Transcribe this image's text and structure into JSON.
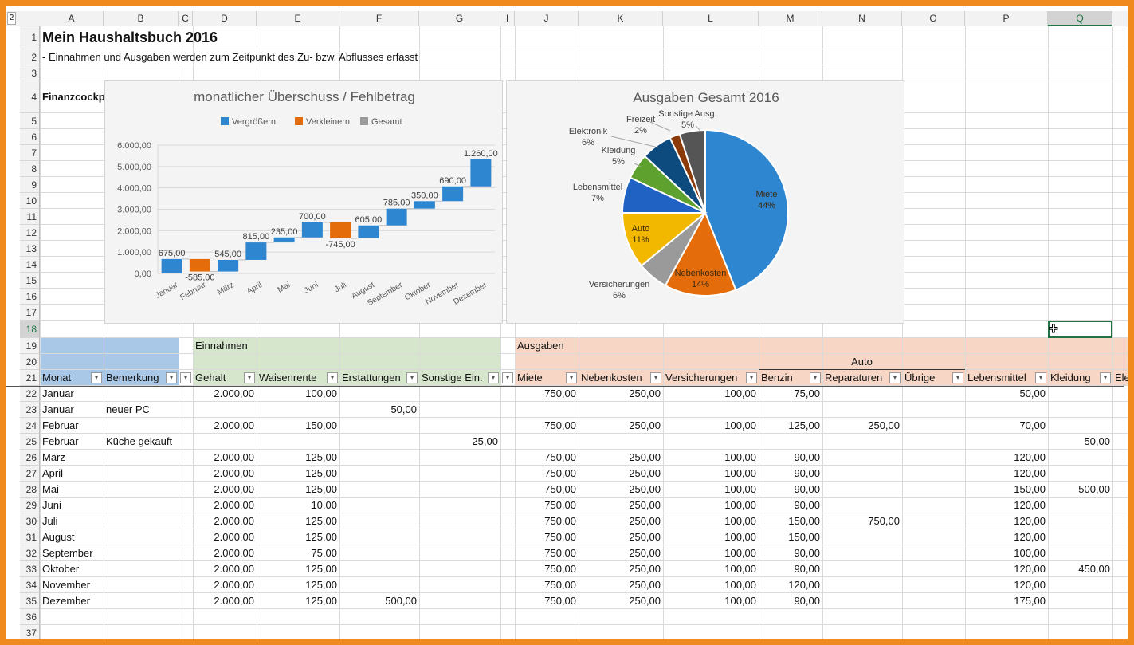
{
  "sheet": {
    "outline_level": "2",
    "columns": [
      "A",
      "B",
      "C",
      "D",
      "E",
      "F",
      "G",
      "I",
      "J",
      "K",
      "L",
      "M",
      "N",
      "O",
      "P",
      "Q",
      ""
    ],
    "title": "Mein Haushaltsbuch 2016",
    "subtitle": "- Einnahmen und Ausgaben werden zum Zeitpunkt des Zu- bzw. Abflusses erfasst",
    "cockpit_label": "Finanzcockpit",
    "selected_cell": "Q18",
    "colors": {
      "accent_frame": "#f08a1e",
      "group_blue": "#a9c8e8",
      "group_green": "#d6e6cd",
      "group_salmon": "#f7d6c5",
      "selection": "#217346"
    }
  },
  "table": {
    "group_einnahmen": "Einnahmen",
    "group_ausgaben": "Ausgaben",
    "subgroup_auto": "Auto",
    "headers": [
      "Monat",
      "Bemerkung",
      "",
      "Gehalt",
      "Waisenrente",
      "Erstattungen",
      "Sonstige Ein.",
      "",
      "Miete",
      "Nebenkosten",
      "Versicherungen",
      "Benzin",
      "Reparaturen",
      "Übrige",
      "Lebensmittel",
      "Kleidung",
      "Ele"
    ],
    "rows": [
      [
        "Januar",
        "",
        "",
        "2.000,00",
        "100,00",
        "",
        "",
        "",
        "750,00",
        "250,00",
        "100,00",
        "75,00",
        "",
        "",
        "50,00",
        ""
      ],
      [
        "Januar",
        "neuer PC",
        "",
        "",
        "",
        "50,00",
        "",
        "",
        "",
        "",
        "",
        "",
        "",
        "",
        "",
        ""
      ],
      [
        "Februar",
        "",
        "",
        "2.000,00",
        "150,00",
        "",
        "",
        "",
        "750,00",
        "250,00",
        "100,00",
        "125,00",
        "250,00",
        "",
        "70,00",
        ""
      ],
      [
        "Februar",
        "Küche gekauft",
        "",
        "",
        "",
        "",
        "25,00",
        "",
        "",
        "",
        "",
        "",
        "",
        "",
        "",
        "50,00"
      ],
      [
        "März",
        "",
        "",
        "2.000,00",
        "125,00",
        "",
        "",
        "",
        "750,00",
        "250,00",
        "100,00",
        "90,00",
        "",
        "",
        "120,00",
        ""
      ],
      [
        "April",
        "",
        "",
        "2.000,00",
        "125,00",
        "",
        "",
        "",
        "750,00",
        "250,00",
        "100,00",
        "90,00",
        "",
        "",
        "120,00",
        ""
      ],
      [
        "Mai",
        "",
        "",
        "2.000,00",
        "125,00",
        "",
        "",
        "",
        "750,00",
        "250,00",
        "100,00",
        "90,00",
        "",
        "",
        "150,00",
        "500,00"
      ],
      [
        "Juni",
        "",
        "",
        "2.000,00",
        "10,00",
        "",
        "",
        "",
        "750,00",
        "250,00",
        "100,00",
        "90,00",
        "",
        "",
        "120,00",
        ""
      ],
      [
        "Juli",
        "",
        "",
        "2.000,00",
        "125,00",
        "",
        "",
        "",
        "750,00",
        "250,00",
        "100,00",
        "150,00",
        "750,00",
        "",
        "120,00",
        ""
      ],
      [
        "August",
        "",
        "",
        "2.000,00",
        "125,00",
        "",
        "",
        "",
        "750,00",
        "250,00",
        "100,00",
        "150,00",
        "",
        "",
        "120,00",
        ""
      ],
      [
        "September",
        "",
        "",
        "2.000,00",
        "75,00",
        "",
        "",
        "",
        "750,00",
        "250,00",
        "100,00",
        "90,00",
        "",
        "",
        "100,00",
        ""
      ],
      [
        "Oktober",
        "",
        "",
        "2.000,00",
        "125,00",
        "",
        "",
        "",
        "750,00",
        "250,00",
        "100,00",
        "90,00",
        "",
        "",
        "120,00",
        "450,00"
      ],
      [
        "November",
        "",
        "",
        "2.000,00",
        "125,00",
        "",
        "",
        "",
        "750,00",
        "250,00",
        "100,00",
        "120,00",
        "",
        "",
        "120,00",
        ""
      ],
      [
        "Dezember",
        "",
        "",
        "2.000,00",
        "125,00",
        "500,00",
        "",
        "",
        "750,00",
        "250,00",
        "100,00",
        "90,00",
        "",
        "",
        "175,00",
        ""
      ]
    ]
  },
  "chart_data": [
    {
      "type": "bar",
      "subtype": "waterfall",
      "title": "monatlicher Überschuss / Fehlbetrag",
      "legend": [
        "Vergrößern",
        "Verkleinern",
        "Gesamt"
      ],
      "legend_colors": [
        "#2e86d0",
        "#e46c0a",
        "#9a9a9a"
      ],
      "legend_position": "top",
      "categories": [
        "Januar",
        "Februar",
        "März",
        "April",
        "Mai",
        "Juni",
        "Juli",
        "August",
        "September",
        "Oktober",
        "November",
        "Dezember"
      ],
      "values": [
        675,
        -585,
        545,
        815,
        235,
        700,
        -745,
        605,
        785,
        350,
        690,
        1260
      ],
      "value_labels": [
        "675,00",
        "-585,00",
        "545,00",
        "815,00",
        "235,00",
        "700,00",
        "-745,00",
        "605,00",
        "785,00",
        "350,00",
        "690,00",
        "1.260,00"
      ],
      "ylim": [
        0,
        6000
      ],
      "yticks": [
        "0,00",
        "1.000,00",
        "2.000,00",
        "3.000,00",
        "4.000,00",
        "5.000,00",
        "6.000,00"
      ],
      "grid": true
    },
    {
      "type": "pie",
      "title": "Ausgaben Gesamt 2016",
      "slices": [
        {
          "label": "Miete",
          "value": 44,
          "text": "44%",
          "color": "#2e86d0"
        },
        {
          "label": "Nebenkosten",
          "value": 14,
          "text": "14%",
          "color": "#e46c0a"
        },
        {
          "label": "Versicherungen",
          "value": 6,
          "text": "6%",
          "color": "#9a9a9a"
        },
        {
          "label": "Auto",
          "value": 11,
          "text": "11%",
          "color": "#f2b800"
        },
        {
          "label": "Lebensmittel",
          "value": 7,
          "text": "7%",
          "color": "#1f62c4"
        },
        {
          "label": "Kleidung",
          "value": 5,
          "text": "5%",
          "color": "#5ea12e"
        },
        {
          "label": "Elektronik",
          "value": 6,
          "text": "6%",
          "color": "#0d4a7e"
        },
        {
          "label": "Freizeit",
          "value": 2,
          "text": "2%",
          "color": "#8b3a0a"
        },
        {
          "label": "Sonstige Ausg.",
          "value": 5,
          "text": "5%",
          "color": "#555555"
        }
      ]
    }
  ]
}
